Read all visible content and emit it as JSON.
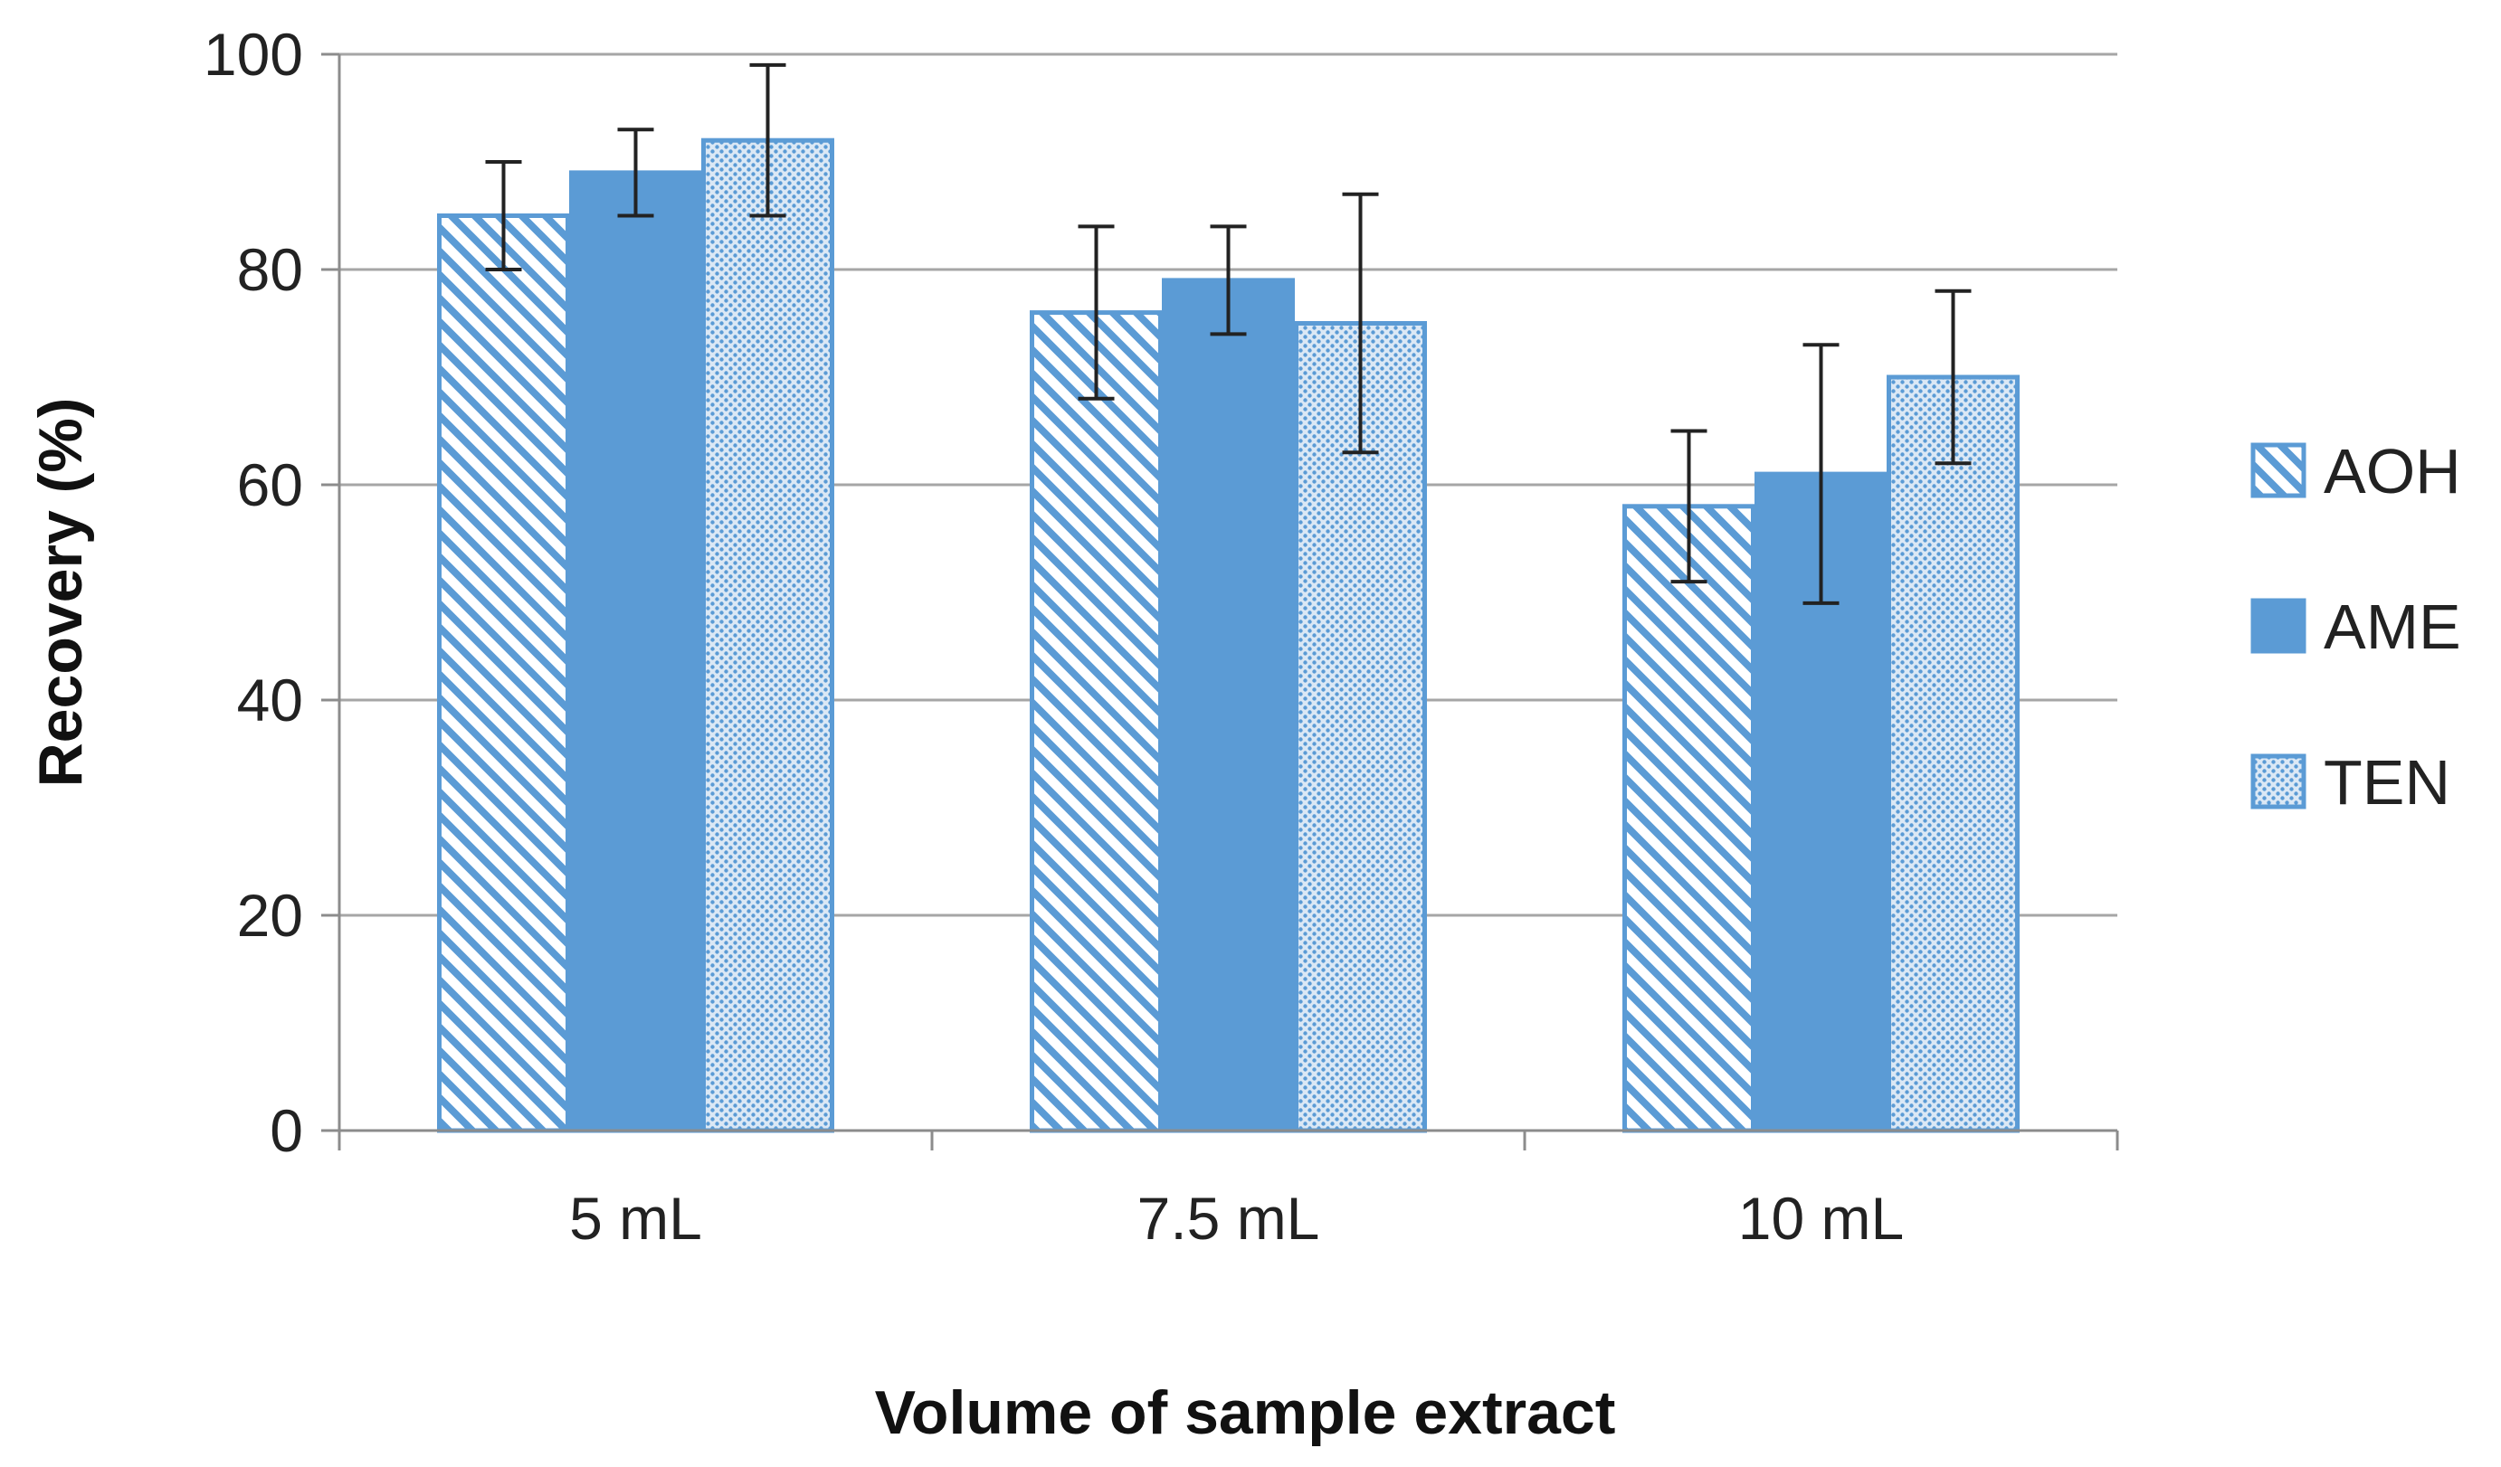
{
  "chart_data": {
    "type": "bar",
    "title": "",
    "xlabel": "Volume of sample extract",
    "ylabel": "Recovery (%)",
    "categories": [
      "5 mL",
      "7.5 mL",
      "10 mL"
    ],
    "ylim": [
      0,
      100
    ],
    "yticks": [
      0,
      20,
      40,
      60,
      80,
      100
    ],
    "grid": true,
    "legend_position": "right",
    "series": [
      {
        "name": "AOH",
        "pattern": "diagonal-hatch",
        "values": [
          85,
          76,
          58
        ],
        "errors": [
          5,
          8,
          7
        ]
      },
      {
        "name": "AME",
        "pattern": "solid",
        "values": [
          89,
          79,
          61
        ],
        "errors": [
          4,
          5,
          12
        ]
      },
      {
        "name": "TEN",
        "pattern": "dotted",
        "values": [
          92,
          75,
          70
        ],
        "errors": [
          7,
          12,
          8
        ]
      }
    ],
    "colors": {
      "bar_fill": "#5b9bd5",
      "bar_edge": "#5b9bd5",
      "hatch_bg": "#ffffff",
      "dot_bg": "#dbe8f5",
      "grid": "#a6a6a6",
      "axis": "#8c8c8c",
      "error_bar": "#222222"
    }
  }
}
